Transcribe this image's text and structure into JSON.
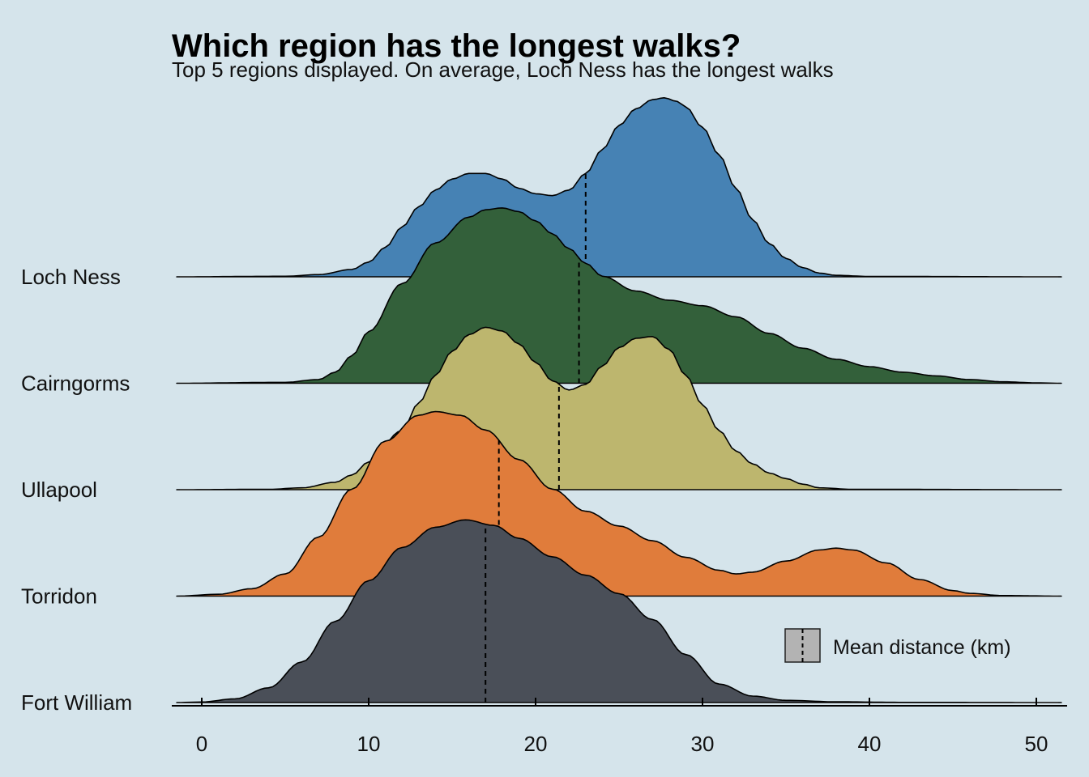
{
  "chart_data": {
    "type": "ridgeline",
    "title": "Which region has the longest walks?",
    "subtitle": "Top 5 regions displayed. On average, Loch Ness has the longest walks",
    "xlim": [
      -2,
      51.5
    ],
    "x_ticks": [
      0,
      10,
      20,
      30,
      40,
      50
    ],
    "legend": {
      "label": "Mean distance (km)",
      "position": "bottom-right"
    },
    "series": [
      {
        "name": "Fort William",
        "color": "#4a4f58",
        "mean": 17.0,
        "density": [
          [
            -1.5,
            0
          ],
          [
            0,
            0.003
          ],
          [
            2,
            0.02
          ],
          [
            4,
            0.08
          ],
          [
            6,
            0.22
          ],
          [
            8,
            0.44
          ],
          [
            10,
            0.66
          ],
          [
            12,
            0.84
          ],
          [
            14,
            0.95
          ],
          [
            15.8,
            0.99
          ],
          [
            17.5,
            0.96
          ],
          [
            19,
            0.89
          ],
          [
            21,
            0.79
          ],
          [
            23,
            0.69
          ],
          [
            25,
            0.59
          ],
          [
            27,
            0.45
          ],
          [
            29,
            0.26
          ],
          [
            31,
            0.1
          ],
          [
            33,
            0.035
          ],
          [
            35,
            0.012
          ],
          [
            38,
            0.004
          ],
          [
            42,
            0.001
          ],
          [
            51.5,
            0
          ]
        ]
      },
      {
        "name": "Torridon",
        "color": "#e07c3b",
        "mean": 17.8,
        "density": [
          [
            -1.5,
            0
          ],
          [
            1,
            0.01
          ],
          [
            3,
            0.04
          ],
          [
            5,
            0.12
          ],
          [
            7,
            0.32
          ],
          [
            9,
            0.58
          ],
          [
            11,
            0.84
          ],
          [
            13,
            0.98
          ],
          [
            14,
            1.0
          ],
          [
            15.5,
            0.98
          ],
          [
            17,
            0.9
          ],
          [
            19,
            0.74
          ],
          [
            21,
            0.58
          ],
          [
            23,
            0.46
          ],
          [
            25,
            0.38
          ],
          [
            27,
            0.3
          ],
          [
            29,
            0.21
          ],
          [
            31,
            0.14
          ],
          [
            32,
            0.12
          ],
          [
            33,
            0.13
          ],
          [
            35,
            0.19
          ],
          [
            37,
            0.25
          ],
          [
            38,
            0.26
          ],
          [
            39,
            0.25
          ],
          [
            41,
            0.18
          ],
          [
            43,
            0.09
          ],
          [
            45,
            0.03
          ],
          [
            46,
            0.015
          ],
          [
            48,
            0.003
          ],
          [
            51.5,
            0
          ]
        ]
      },
      {
        "name": "Ullapool",
        "color": "#bdb66e",
        "mean": 21.4,
        "density": [
          [
            -1.5,
            0
          ],
          [
            4,
            0.002
          ],
          [
            6,
            0.01
          ],
          [
            8,
            0.04
          ],
          [
            9,
            0.08
          ],
          [
            10,
            0.15
          ],
          [
            12,
            0.32
          ],
          [
            13,
            0.47
          ],
          [
            14,
            0.62
          ],
          [
            15,
            0.75
          ],
          [
            16,
            0.84
          ],
          [
            17,
            0.88
          ],
          [
            18,
            0.86
          ],
          [
            19,
            0.79
          ],
          [
            20,
            0.69
          ],
          [
            21,
            0.59
          ],
          [
            22,
            0.54
          ],
          [
            23,
            0.57
          ],
          [
            24,
            0.67
          ],
          [
            25,
            0.77
          ],
          [
            26,
            0.82
          ],
          [
            27,
            0.83
          ],
          [
            28,
            0.76
          ],
          [
            29,
            0.62
          ],
          [
            30,
            0.46
          ],
          [
            31,
            0.32
          ],
          [
            32,
            0.21
          ],
          [
            33,
            0.14
          ],
          [
            34,
            0.09
          ],
          [
            35,
            0.06
          ],
          [
            36,
            0.03
          ],
          [
            37,
            0.01
          ],
          [
            39,
            0.002
          ],
          [
            51.5,
            0
          ]
        ]
      },
      {
        "name": "Cairngorms",
        "color": "#33603a",
        "mean": 22.6,
        "density": [
          [
            -1.5,
            0
          ],
          [
            5,
            0.005
          ],
          [
            7,
            0.02
          ],
          [
            8,
            0.06
          ],
          [
            9,
            0.15
          ],
          [
            10,
            0.28
          ],
          [
            12,
            0.54
          ],
          [
            14,
            0.76
          ],
          [
            16,
            0.9
          ],
          [
            17,
            0.94
          ],
          [
            18,
            0.95
          ],
          [
            19,
            0.93
          ],
          [
            20,
            0.88
          ],
          [
            21,
            0.81
          ],
          [
            22,
            0.73
          ],
          [
            23,
            0.65
          ],
          [
            24,
            0.58
          ],
          [
            26,
            0.5
          ],
          [
            28,
            0.45
          ],
          [
            30,
            0.42
          ],
          [
            32,
            0.36
          ],
          [
            34,
            0.27
          ],
          [
            36,
            0.19
          ],
          [
            38,
            0.13
          ],
          [
            40,
            0.09
          ],
          [
            42,
            0.06
          ],
          [
            44,
            0.04
          ],
          [
            46,
            0.02
          ],
          [
            48,
            0.008
          ],
          [
            50,
            0.002
          ],
          [
            51.5,
            0
          ]
        ]
      },
      {
        "name": "Loch Ness",
        "color": "#4682b4",
        "mean": 23.0,
        "density": [
          [
            -1.5,
            0
          ],
          [
            5,
            0.003
          ],
          [
            7,
            0.012
          ],
          [
            9,
            0.04
          ],
          [
            10,
            0.08
          ],
          [
            11,
            0.16
          ],
          [
            12,
            0.27
          ],
          [
            13,
            0.38
          ],
          [
            14,
            0.47
          ],
          [
            15,
            0.53
          ],
          [
            16,
            0.56
          ],
          [
            17,
            0.56
          ],
          [
            18,
            0.53
          ],
          [
            19,
            0.48
          ],
          [
            20,
            0.45
          ],
          [
            21,
            0.44
          ],
          [
            22,
            0.47
          ],
          [
            23,
            0.56
          ],
          [
            24,
            0.69
          ],
          [
            25,
            0.82
          ],
          [
            26,
            0.91
          ],
          [
            27,
            0.96
          ],
          [
            27.7,
            0.97
          ],
          [
            28.5,
            0.95
          ],
          [
            29,
            0.92
          ],
          [
            30,
            0.81
          ],
          [
            31,
            0.66
          ],
          [
            32,
            0.48
          ],
          [
            33,
            0.31
          ],
          [
            34,
            0.18
          ],
          [
            35,
            0.1
          ],
          [
            36,
            0.05
          ],
          [
            37,
            0.02
          ],
          [
            38,
            0.008
          ],
          [
            40,
            0.002
          ],
          [
            51.5,
            0
          ]
        ]
      }
    ]
  }
}
